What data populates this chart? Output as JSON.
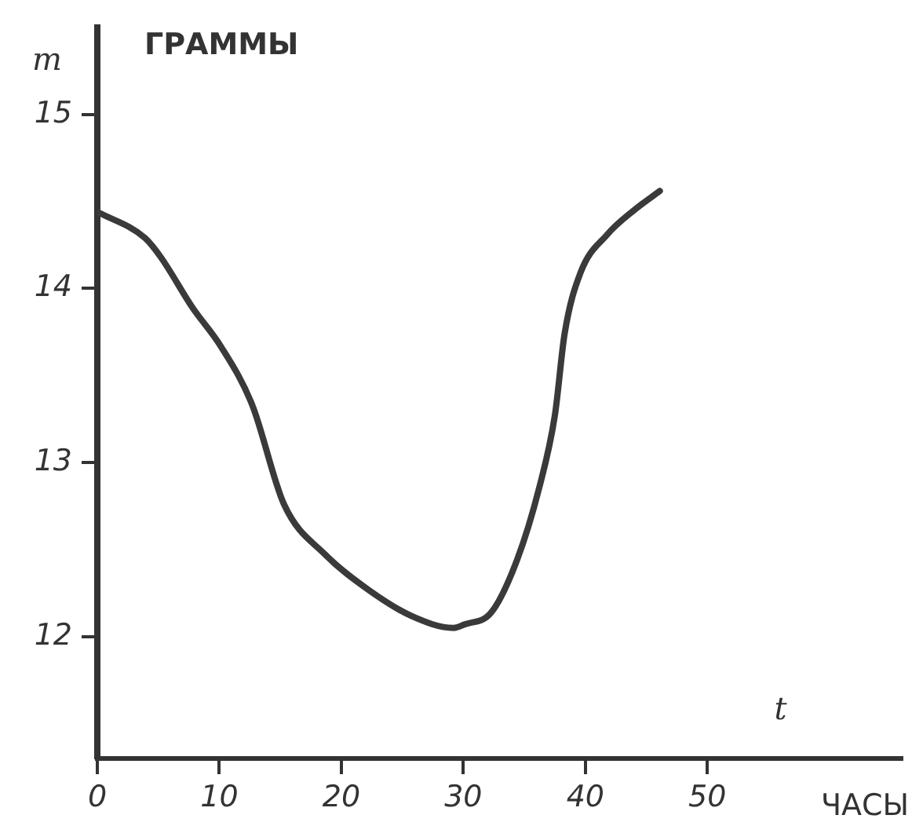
{
  "chart_data": {
    "type": "line",
    "xlabel": "t",
    "ylabel": "m",
    "annotations": [
      "ГРАММЫ",
      "ЧАСЫ"
    ],
    "x": [
      0,
      3.9,
      5.2,
      7.8,
      10.1,
      12.7,
      15.3,
      18.7,
      22.2,
      25.7,
      29.2,
      30.1,
      32.3,
      34.4,
      36.2,
      37.5,
      38.3,
      39.6,
      41.8,
      44.0,
      46.1
    ],
    "series": [
      {
        "color": "#3a3a3a",
        "values": [
          14.44,
          14.29,
          14.18,
          13.89,
          13.67,
          13.33,
          12.76,
          12.47,
          12.27,
          12.12,
          12.05,
          12.07,
          12.14,
          12.44,
          12.85,
          13.27,
          13.74,
          14.09,
          14.31,
          14.45,
          14.56
        ]
      }
    ],
    "xlim": [
      0,
      66
    ],
    "ylim": [
      11.3,
      15.5
    ],
    "xticks": [
      0,
      10,
      20,
      30,
      40,
      50
    ],
    "yticks": [
      12,
      13,
      14,
      15
    ],
    "grid": false,
    "legend": false,
    "marker": "none",
    "line_style": "solid"
  }
}
